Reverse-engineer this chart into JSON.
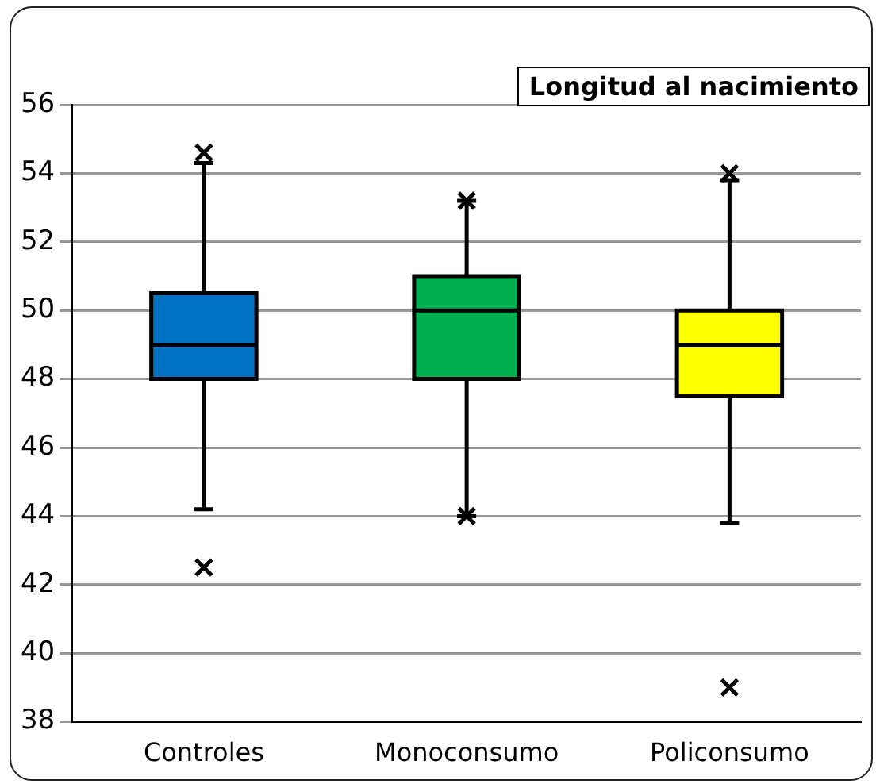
{
  "chart_data": {
    "type": "box",
    "title": "Longitud al nacimiento",
    "categories": [
      "Controles",
      "Monoconsumo",
      "Policonsumo"
    ],
    "colors": [
      "#0070c0",
      "#00b050",
      "#ffff00"
    ],
    "boxes": [
      {
        "low": 44.2,
        "q1": 48,
        "median": 49,
        "q3": 50.5,
        "high": 54.3,
        "outliers": [
          54.6,
          42.5
        ]
      },
      {
        "low": 44,
        "q1": 48,
        "median": 50,
        "q3": 51,
        "high": 53.2,
        "outliers": [
          53.2,
          44
        ]
      },
      {
        "low": 43.8,
        "q1": 47.5,
        "median": 49,
        "q3": 50,
        "high": 53.8,
        "outliers": [
          54,
          39
        ]
      }
    ],
    "ylim": [
      38,
      56
    ],
    "yticks": [
      38,
      40,
      42,
      44,
      46,
      48,
      50,
      52,
      54,
      56
    ],
    "grid": "y",
    "marker": "cross",
    "legend": false
  }
}
